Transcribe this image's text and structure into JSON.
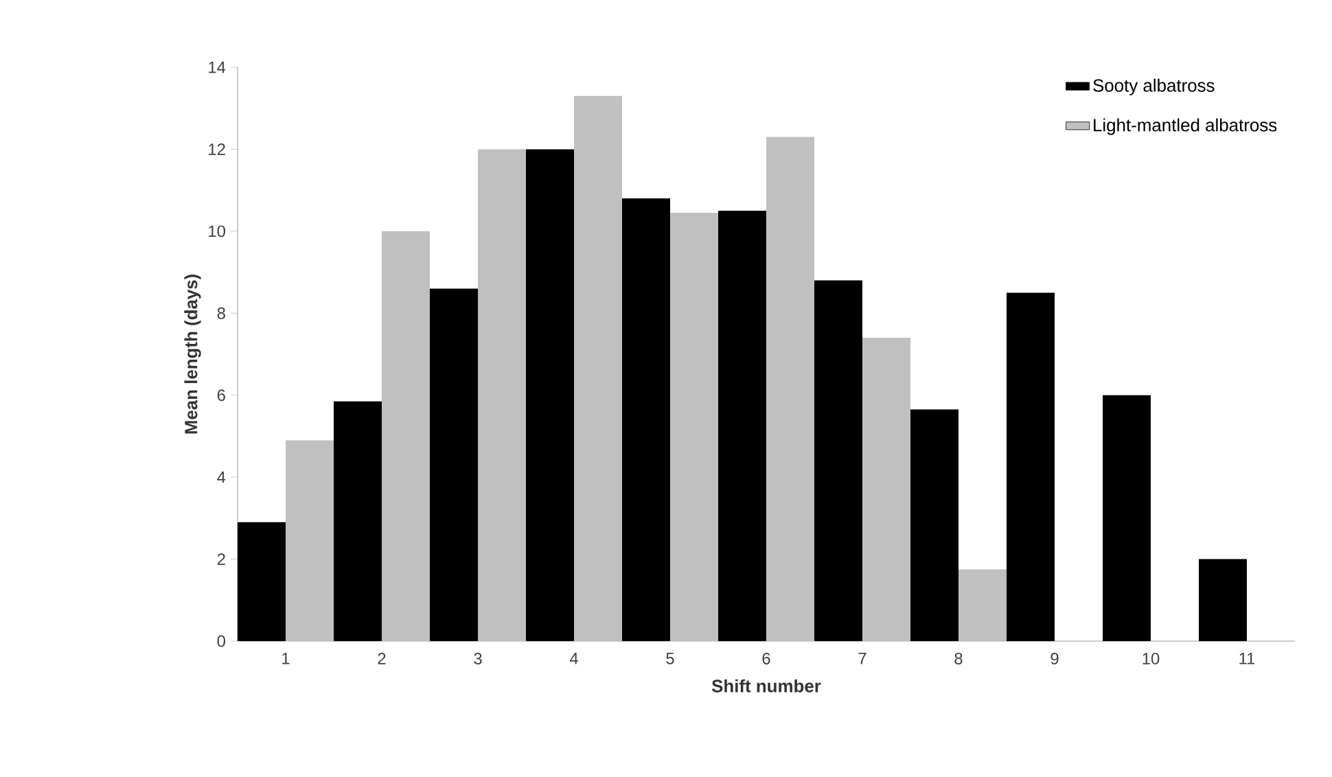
{
  "chart_data": {
    "type": "bar",
    "xlabel": "Shift number",
    "ylabel": "Mean length (days)",
    "categories": [
      "1",
      "2",
      "3",
      "4",
      "5",
      "6",
      "7",
      "8",
      "9",
      "10",
      "11"
    ],
    "series": [
      {
        "name": "Sooty albatross",
        "color": "#000000",
        "values": [
          2.9,
          5.85,
          8.6,
          12.0,
          10.8,
          10.5,
          8.8,
          5.65,
          8.5,
          6.0,
          2.0
        ]
      },
      {
        "name": "Light-mantled albatross",
        "color": "#c0c0c0",
        "values": [
          4.9,
          10.0,
          12.0,
          13.3,
          10.45,
          12.3,
          7.4,
          1.75,
          null,
          null,
          null
        ]
      }
    ],
    "ylim": [
      0,
      14
    ],
    "yticks": [
      0,
      2,
      4,
      6,
      8,
      10,
      12,
      14
    ],
    "legend": "top right"
  }
}
